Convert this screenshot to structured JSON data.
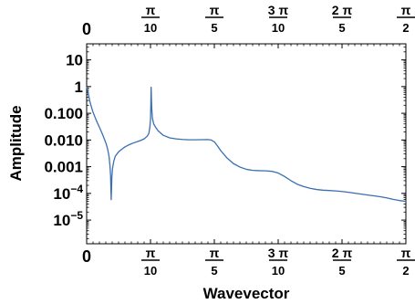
{
  "chart_data": {
    "type": "line",
    "title": "",
    "xlabel": "Wavevector",
    "ylabel": "Amplitude",
    "xscale": "linear",
    "yscale": "log",
    "xlim": [
      0,
      1.5708
    ],
    "ylim": [
      1.3e-06,
      40
    ],
    "x_ticks": [
      {
        "value": 0,
        "num": "0",
        "den": ""
      },
      {
        "value": 0.31416,
        "num": "π",
        "den": "10"
      },
      {
        "value": 0.62832,
        "num": "π",
        "den": "5"
      },
      {
        "value": 0.94248,
        "num": "3 π",
        "den": "10"
      },
      {
        "value": 1.25664,
        "num": "2 π",
        "den": "5"
      },
      {
        "value": 1.5708,
        "num": "π",
        "den": "2"
      }
    ],
    "y_ticks": [
      {
        "value": 10,
        "label": "10",
        "exp": ""
      },
      {
        "value": 1,
        "label": "1",
        "exp": ""
      },
      {
        "value": 0.1,
        "label": "0.100",
        "exp": ""
      },
      {
        "value": 0.01,
        "label": "0.010",
        "exp": ""
      },
      {
        "value": 0.001,
        "label": "0.001",
        "exp": ""
      },
      {
        "value": 0.0001,
        "label": "10",
        "exp": "−4"
      },
      {
        "value": 1e-05,
        "label": "10",
        "exp": "−5"
      }
    ],
    "series": [
      {
        "color": "#3a6fb0",
        "points": [
          [
            0.0,
            1.0
          ],
          [
            0.0079,
            0.55
          ],
          [
            0.0157,
            0.28
          ],
          [
            0.0236,
            0.17
          ],
          [
            0.0314,
            0.11
          ],
          [
            0.0471,
            0.055
          ],
          [
            0.0628,
            0.03
          ],
          [
            0.0785,
            0.016
          ],
          [
            0.0942,
            0.0079
          ],
          [
            0.1021,
            0.005
          ],
          [
            0.11,
            0.0025
          ],
          [
            0.1147,
            0.0011
          ],
          [
            0.1178,
            0.00045
          ],
          [
            0.1194,
            0.00015
          ],
          [
            0.1209,
            5.8e-05
          ],
          [
            0.1225,
            0.00016
          ],
          [
            0.1241,
            0.0004
          ],
          [
            0.1272,
            0.00085
          ],
          [
            0.1335,
            0.0016
          ],
          [
            0.1413,
            0.0025
          ],
          [
            0.1571,
            0.0036
          ],
          [
            0.1728,
            0.0045
          ],
          [
            0.1885,
            0.0055
          ],
          [
            0.2042,
            0.0064
          ],
          [
            0.2199,
            0.0072
          ],
          [
            0.2356,
            0.008
          ],
          [
            0.2513,
            0.0088
          ],
          [
            0.267,
            0.0097
          ],
          [
            0.2827,
            0.011
          ],
          [
            0.2985,
            0.014
          ],
          [
            0.3063,
            0.018
          ],
          [
            0.311,
            0.03
          ],
          [
            0.3142,
            0.06
          ],
          [
            0.3157,
            0.18
          ],
          [
            0.3173,
            0.95
          ],
          [
            0.3188,
            0.35
          ],
          [
            0.3204,
            0.15
          ],
          [
            0.3236,
            0.065
          ],
          [
            0.3299,
            0.04
          ],
          [
            0.3393,
            0.03
          ],
          [
            0.3519,
            0.022
          ],
          [
            0.377,
            0.015
          ],
          [
            0.4084,
            0.012
          ],
          [
            0.4398,
            0.011
          ],
          [
            0.4712,
            0.0105
          ],
          [
            0.5027,
            0.0102
          ],
          [
            0.5341,
            0.0102
          ],
          [
            0.5655,
            0.0103
          ],
          [
            0.5969,
            0.0104
          ],
          [
            0.6126,
            0.01
          ],
          [
            0.6283,
            0.0085
          ],
          [
            0.644,
            0.006
          ],
          [
            0.6597,
            0.004
          ],
          [
            0.6912,
            0.0021
          ],
          [
            0.7226,
            0.0013
          ],
          [
            0.754,
            0.00097
          ],
          [
            0.7854,
            0.0008
          ],
          [
            0.8168,
            0.00073
          ],
          [
            0.8482,
            0.00071
          ],
          [
            0.8796,
            0.0007
          ],
          [
            0.911,
            0.00067
          ],
          [
            0.9425,
            0.00058
          ],
          [
            0.9739,
            0.00043
          ],
          [
            1.0053,
            0.0003
          ],
          [
            1.0367,
            0.00022
          ],
          [
            1.0681,
            0.00018
          ],
          [
            1.0996,
            0.000155
          ],
          [
            1.131,
            0.00014
          ],
          [
            1.1624,
            0.000132
          ],
          [
            1.1938,
            0.000128
          ],
          [
            1.2252,
            0.000124
          ],
          [
            1.2566,
            0.000118
          ],
          [
            1.2881,
            0.00011
          ],
          [
            1.3195,
            0.000102
          ],
          [
            1.3509,
            9.4e-05
          ],
          [
            1.3823,
            8.7e-05
          ],
          [
            1.4137,
            8.1e-05
          ],
          [
            1.4451,
            7.5e-05
          ],
          [
            1.4765,
            6.8e-05
          ],
          [
            1.508,
            6e-05
          ],
          [
            1.5394,
            5.4e-05
          ],
          [
            1.5708,
            5e-05
          ]
        ]
      }
    ]
  }
}
